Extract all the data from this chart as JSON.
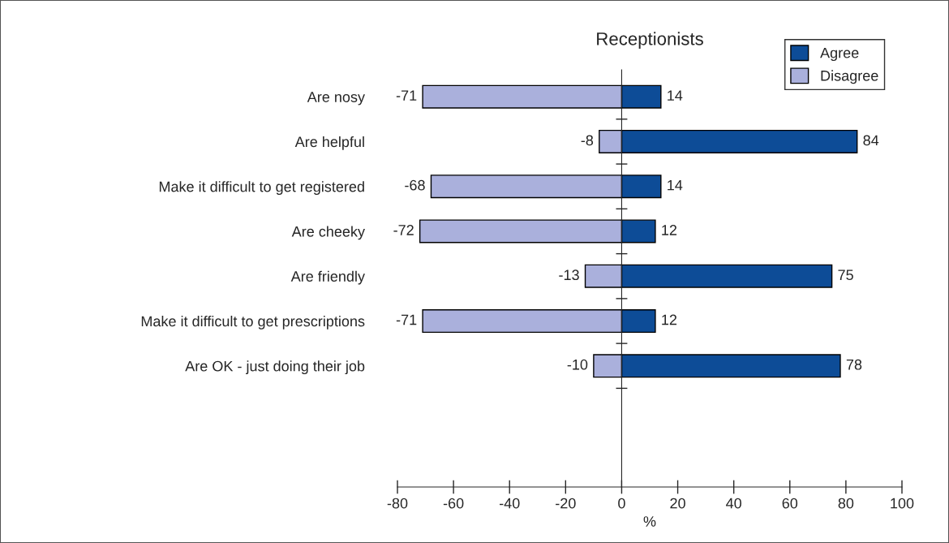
{
  "chart_data": {
    "type": "bar",
    "orientation": "horizontal",
    "title": "Receptionists",
    "xlabel": "%",
    "categories": [
      "Are nosy",
      "Are helpful",
      "Make it difficult to get registered",
      "Are cheeky",
      "Are friendly",
      "Make it difficult to get prescriptions",
      "Are OK - just doing their job"
    ],
    "series": [
      {
        "name": "Agree",
        "color": "#0d4c97",
        "values": [
          14,
          84,
          14,
          12,
          75,
          12,
          78
        ]
      },
      {
        "name": "Disagree",
        "color": "#aab0dc",
        "values": [
          -71,
          -8,
          -68,
          -72,
          -13,
          -71,
          -10
        ]
      }
    ],
    "xlim": [
      -80,
      100
    ],
    "xticks": [
      -80,
      -60,
      -40,
      -20,
      0,
      20,
      40,
      60,
      80,
      100
    ],
    "data_labels": true,
    "legend": "top right",
    "stacked": true
  }
}
